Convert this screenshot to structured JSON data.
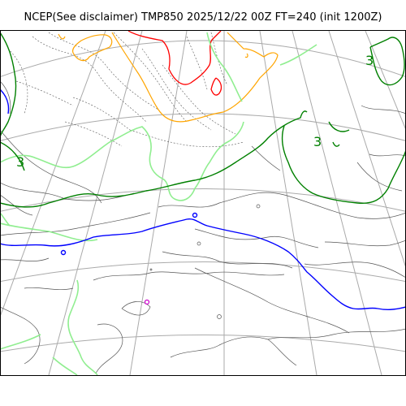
{
  "title": "NCEP(See disclaimer) TMP850 2025/12/22 00Z FT=240 (init 1200Z)",
  "colors": {
    "zero_isotherm": "#0000ff",
    "isotherm_3": "#008000",
    "light_green": "#90ee90",
    "orange": "#ffa500",
    "red": "#ff0000",
    "magenta": "#cc00cc",
    "grid": "#aaaaaa",
    "coast": "#555555",
    "frame": "#000000"
  },
  "contour_labels": [
    "3",
    "3",
    "3"
  ]
}
